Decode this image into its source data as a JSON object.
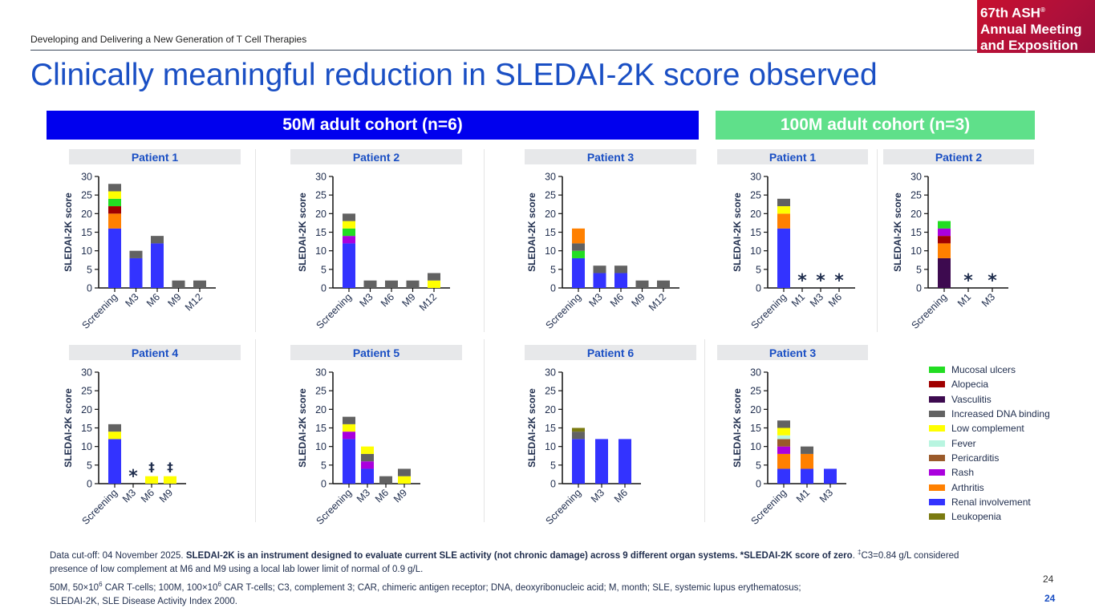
{
  "header": {
    "subtitle": "Developing and Delivering a New Generation of T Cell Therapies",
    "title": "Clinically meaningful reduction in SLEDAI-2K score observed",
    "logo_lines": [
      "67th ASH",
      "Annual Meeting",
      "and Exposition"
    ],
    "logo_reg": "®"
  },
  "cohorts": [
    {
      "label": "50M adult cohort (n=6)",
      "color": "#0000ee"
    },
    {
      "label": "100M adult cohort (n=3)",
      "color": "#5fe08a"
    }
  ],
  "legend": [
    {
      "key": "mucosal",
      "label": "Mucosal ulcers",
      "color": "#22dd22"
    },
    {
      "key": "alopecia",
      "label": "Alopecia",
      "color": "#a00000"
    },
    {
      "key": "vasculitis",
      "label": "Vasculitis",
      "color": "#3d0a4f"
    },
    {
      "key": "dna",
      "label": "Increased DNA binding",
      "color": "#626262"
    },
    {
      "key": "lowc",
      "label": "Low complement",
      "color": "#ffff00"
    },
    {
      "key": "fever",
      "label": "Fever",
      "color": "#b8f5e0"
    },
    {
      "key": "pericarditis",
      "label": "Pericarditis",
      "color": "#9a5a2a"
    },
    {
      "key": "rash",
      "label": "Rash",
      "color": "#aa00dd"
    },
    {
      "key": "arthritis",
      "label": "Arthritis",
      "color": "#ff8000"
    },
    {
      "key": "renal",
      "label": "Renal involvement",
      "color": "#3333ff"
    },
    {
      "key": "leukopenia",
      "label": "Leukopenia",
      "color": "#7a7a10"
    }
  ],
  "chart_data": [
    {
      "type": "bar",
      "stacked": true,
      "cohort": "50M",
      "title": "Patient 1",
      "ylabel": "SLEDAI-2K score",
      "ylim": [
        0,
        30
      ],
      "yticks": [
        0,
        5,
        10,
        15,
        20,
        25,
        30
      ],
      "categories": [
        "Screening",
        "M3",
        "M6",
        "M9",
        "M12"
      ],
      "stacks": [
        [
          {
            "k": "renal",
            "v": 16
          },
          {
            "k": "arthritis",
            "v": 4
          },
          {
            "k": "alopecia",
            "v": 2
          },
          {
            "k": "mucosal",
            "v": 2
          },
          {
            "k": "lowc",
            "v": 2
          },
          {
            "k": "dna",
            "v": 2
          }
        ],
        [
          {
            "k": "renal",
            "v": 8
          },
          {
            "k": "dna",
            "v": 2
          }
        ],
        [
          {
            "k": "renal",
            "v": 12
          },
          {
            "k": "dna",
            "v": 2
          }
        ],
        [
          {
            "k": "dna",
            "v": 2
          }
        ],
        [
          {
            "k": "dna",
            "v": 2
          }
        ]
      ],
      "annotations": [
        "",
        "",
        "",
        "",
        ""
      ]
    },
    {
      "type": "bar",
      "stacked": true,
      "cohort": "50M",
      "title": "Patient 2",
      "ylabel": "SLEDAI-2K score",
      "ylim": [
        0,
        30
      ],
      "yticks": [
        0,
        5,
        10,
        15,
        20,
        25,
        30
      ],
      "categories": [
        "Screening",
        "M3",
        "M6",
        "M9",
        "M12"
      ],
      "stacks": [
        [
          {
            "k": "renal",
            "v": 12
          },
          {
            "k": "rash",
            "v": 2
          },
          {
            "k": "mucosal",
            "v": 2
          },
          {
            "k": "lowc",
            "v": 2
          },
          {
            "k": "dna",
            "v": 2
          }
        ],
        [
          {
            "k": "dna",
            "v": 2
          }
        ],
        [
          {
            "k": "dna",
            "v": 2
          }
        ],
        [
          {
            "k": "dna",
            "v": 2
          }
        ],
        [
          {
            "k": "lowc",
            "v": 2
          },
          {
            "k": "dna",
            "v": 2
          }
        ]
      ],
      "annotations": [
        "",
        "",
        "",
        "",
        ""
      ]
    },
    {
      "type": "bar",
      "stacked": true,
      "cohort": "50M",
      "title": "Patient 3",
      "ylabel": "SLEDAI-2K score",
      "ylim": [
        0,
        30
      ],
      "yticks": [
        0,
        5,
        10,
        15,
        20,
        25,
        30
      ],
      "categories": [
        "Screening",
        "M3",
        "M6",
        "M9",
        "M12"
      ],
      "stacks": [
        [
          {
            "k": "renal",
            "v": 8
          },
          {
            "k": "mucosal",
            "v": 2
          },
          {
            "k": "dna",
            "v": 2
          },
          {
            "k": "arthritis",
            "v": 4
          }
        ],
        [
          {
            "k": "renal",
            "v": 4
          },
          {
            "k": "dna",
            "v": 2
          }
        ],
        [
          {
            "k": "renal",
            "v": 4
          },
          {
            "k": "dna",
            "v": 2
          }
        ],
        [
          {
            "k": "dna",
            "v": 2
          }
        ],
        [
          {
            "k": "dna",
            "v": 2
          }
        ]
      ],
      "annotations": [
        "",
        "",
        "",
        "",
        ""
      ]
    },
    {
      "type": "bar",
      "stacked": true,
      "cohort": "100M",
      "title": "Patient 1",
      "ylabel": "SLEDAI-2K score",
      "ylim": [
        0,
        30
      ],
      "yticks": [
        0,
        5,
        10,
        15,
        20,
        25,
        30
      ],
      "categories": [
        "Screening",
        "M1",
        "M3",
        "M6"
      ],
      "stacks": [
        [
          {
            "k": "renal",
            "v": 16
          },
          {
            "k": "arthritis",
            "v": 4
          },
          {
            "k": "lowc",
            "v": 2
          },
          {
            "k": "dna",
            "v": 2
          }
        ],
        [],
        [],
        []
      ],
      "annotations": [
        "",
        "*",
        "*",
        "*"
      ]
    },
    {
      "type": "bar",
      "stacked": true,
      "cohort": "100M",
      "title": "Patient 2",
      "ylabel": "SLEDAI-2K score",
      "ylim": [
        0,
        30
      ],
      "yticks": [
        0,
        5,
        10,
        15,
        20,
        25,
        30
      ],
      "categories": [
        "Screening",
        "M1",
        "M3"
      ],
      "stacks": [
        [
          {
            "k": "vasculitis",
            "v": 8
          },
          {
            "k": "arthritis",
            "v": 4
          },
          {
            "k": "alopecia",
            "v": 2
          },
          {
            "k": "rash",
            "v": 2
          },
          {
            "k": "mucosal",
            "v": 2
          }
        ],
        [],
        []
      ],
      "annotations": [
        "",
        "*",
        "*"
      ]
    },
    {
      "type": "bar",
      "stacked": true,
      "cohort": "50M",
      "title": "Patient 4",
      "ylabel": "SLEDAI-2K score",
      "ylim": [
        0,
        30
      ],
      "yticks": [
        0,
        5,
        10,
        15,
        20,
        25,
        30
      ],
      "categories": [
        "Screening",
        "M3",
        "M6",
        "M9"
      ],
      "stacks": [
        [
          {
            "k": "renal",
            "v": 12
          },
          {
            "k": "lowc",
            "v": 2
          },
          {
            "k": "dna",
            "v": 2
          }
        ],
        [],
        [
          {
            "k": "lowc",
            "v": 2
          }
        ],
        [
          {
            "k": "lowc",
            "v": 2
          }
        ]
      ],
      "annotations": [
        "",
        "*",
        "‡",
        "‡"
      ]
    },
    {
      "type": "bar",
      "stacked": true,
      "cohort": "50M",
      "title": "Patient 5",
      "ylabel": "SLEDAI-2K score",
      "ylim": [
        0,
        30
      ],
      "yticks": [
        0,
        5,
        10,
        15,
        20,
        25,
        30
      ],
      "categories": [
        "Screening",
        "M3",
        "M6",
        "M9"
      ],
      "stacks": [
        [
          {
            "k": "renal",
            "v": 12
          },
          {
            "k": "rash",
            "v": 2
          },
          {
            "k": "lowc",
            "v": 2
          },
          {
            "k": "dna",
            "v": 2
          }
        ],
        [
          {
            "k": "renal",
            "v": 4
          },
          {
            "k": "rash",
            "v": 2
          },
          {
            "k": "dna",
            "v": 2
          },
          {
            "k": "lowc",
            "v": 2
          }
        ],
        [
          {
            "k": "dna",
            "v": 2
          }
        ],
        [
          {
            "k": "lowc",
            "v": 2
          },
          {
            "k": "dna",
            "v": 2
          }
        ]
      ],
      "annotations": [
        "",
        "",
        "",
        ""
      ]
    },
    {
      "type": "bar",
      "stacked": true,
      "cohort": "50M",
      "title": "Patient 6",
      "ylabel": "SLEDAI-2K score",
      "ylim": [
        0,
        30
      ],
      "yticks": [
        0,
        5,
        10,
        15,
        20,
        25,
        30
      ],
      "categories": [
        "Screening",
        "M3",
        "M6"
      ],
      "stacks": [
        [
          {
            "k": "renal",
            "v": 12
          },
          {
            "k": "dna",
            "v": 2
          },
          {
            "k": "leukopenia",
            "v": 1
          }
        ],
        [
          {
            "k": "renal",
            "v": 12
          }
        ],
        [
          {
            "k": "renal",
            "v": 12
          }
        ]
      ],
      "annotations": [
        "",
        "",
        ""
      ]
    },
    {
      "type": "bar",
      "stacked": true,
      "cohort": "100M",
      "title": "Patient 3",
      "ylabel": "SLEDAI-2K score",
      "ylim": [
        0,
        30
      ],
      "yticks": [
        0,
        5,
        10,
        15,
        20,
        25,
        30
      ],
      "categories": [
        "Screening",
        "M1",
        "M3"
      ],
      "stacks": [
        [
          {
            "k": "renal",
            "v": 4
          },
          {
            "k": "arthritis",
            "v": 4
          },
          {
            "k": "rash",
            "v": 2
          },
          {
            "k": "pericarditis",
            "v": 2
          },
          {
            "k": "fever",
            "v": 1
          },
          {
            "k": "lowc",
            "v": 2
          },
          {
            "k": "dna",
            "v": 2
          }
        ],
        [
          {
            "k": "renal",
            "v": 4
          },
          {
            "k": "arthritis",
            "v": 4
          },
          {
            "k": "dna",
            "v": 2
          }
        ],
        [
          {
            "k": "renal",
            "v": 4
          }
        ]
      ],
      "annotations": [
        "",
        "",
        ""
      ]
    }
  ],
  "footnote": {
    "line1_plain": "Data cut-off: 04 November 2025. ",
    "line1_bold": "SLEDAI-2K is an instrument designed to evaluate current SLE activity (not chronic damage) across 9 different organ systems. *SLEDAI-2K score of zero",
    "line1_tail": ". ",
    "dagger": "‡",
    "line1_end": "C3=0.84 g/L considered",
    "line2": "presence of low complement at M6 and M9 using a local lab lower limit of normal of 0.9 g/L.",
    "line3a": "50M, 50×10",
    "sup6": "6",
    "line3b": " CAR T-cells; 100M, 100×10",
    "line3c": " CAR T-cells; C3, complement 3; CAR, chimeric antigen receptor; DNA, deoxyribonucleic acid; M, month; SLE, systemic lupus erythematosus;",
    "line4": "SLEDAI-2K, SLE Disease Activity Index 2000."
  },
  "page_number": "24",
  "page_number_footer": "24"
}
